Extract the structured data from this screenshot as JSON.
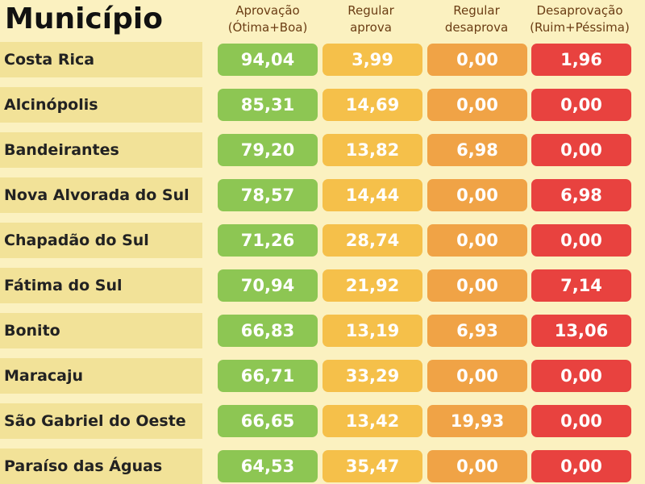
{
  "header": {
    "title": "Município",
    "columns": [
      {
        "line1": "Aprovação",
        "line2": "(Ótima+Boa)"
      },
      {
        "line1": "Regular",
        "line2": "aprova"
      },
      {
        "line1": "Regular",
        "line2": "desaprova"
      },
      {
        "line1": "Desaprovação",
        "line2": "(Ruim+Péssima)"
      }
    ]
  },
  "colors": {
    "background": "#fbf1c0",
    "label_band": "#f2e298",
    "aprovacao": "#8dc653",
    "regular_aprova": "#f5c04a",
    "regular_desaprova": "#f0a346",
    "desaprovacao": "#e8423f"
  },
  "chart_data": {
    "type": "table",
    "columns": [
      "Aprovação (Ótima+Boa)",
      "Regular aprova",
      "Regular desaprova",
      "Desaprovação (Ruim+Péssima)"
    ],
    "rows": [
      {
        "municipio": "Costa Rica",
        "values": [
          "94,04",
          "3,99",
          "0,00",
          "1,96"
        ]
      },
      {
        "municipio": "Alcinópolis",
        "values": [
          "85,31",
          "14,69",
          "0,00",
          "0,00"
        ]
      },
      {
        "municipio": "Bandeirantes",
        "values": [
          "79,20",
          "13,82",
          "6,98",
          "0,00"
        ]
      },
      {
        "municipio": "Nova Alvorada do Sul",
        "values": [
          "78,57",
          "14,44",
          "0,00",
          "6,98"
        ]
      },
      {
        "municipio": "Chapadão do Sul",
        "values": [
          "71,26",
          "28,74",
          "0,00",
          "0,00"
        ]
      },
      {
        "municipio": "Fátima do Sul",
        "values": [
          "70,94",
          "21,92",
          "0,00",
          "7,14"
        ]
      },
      {
        "municipio": "Bonito",
        "values": [
          "66,83",
          "13,19",
          "6,93",
          "13,06"
        ]
      },
      {
        "municipio": "Maracaju",
        "values": [
          "66,71",
          "33,29",
          "0,00",
          "0,00"
        ]
      },
      {
        "municipio": "São Gabriel do Oeste",
        "values": [
          "66,65",
          "13,42",
          "19,93",
          "0,00"
        ]
      },
      {
        "municipio": "Paraíso das Águas",
        "values": [
          "64,53",
          "35,47",
          "0,00",
          "0,00"
        ]
      }
    ]
  }
}
